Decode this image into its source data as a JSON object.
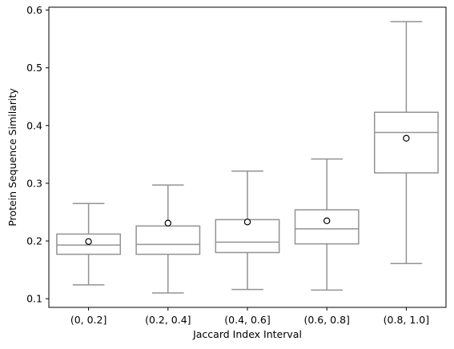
{
  "chart_data": {
    "type": "box",
    "xlabel": "Jaccard Index Interval",
    "ylabel": "Protein Sequence Similarity",
    "ylim": [
      0.085,
      0.605
    ],
    "yticks": [
      0.1,
      0.2,
      0.3,
      0.4,
      0.5,
      0.6
    ],
    "ytick_labels": [
      "0.1",
      "0.2",
      "0.3",
      "0.4",
      "0.5",
      "0.6"
    ],
    "categories": [
      "(0, 0.2]",
      "(0.2, 0.4]",
      "(0.4, 0.6]",
      "(0.6, 0.8]",
      "(0.8, 1.0]"
    ],
    "boxes": [
      {
        "whisker_low": 0.124,
        "q1": 0.177,
        "median": 0.193,
        "q3": 0.212,
        "whisker_high": 0.265,
        "mean": 0.199
      },
      {
        "whisker_low": 0.11,
        "q1": 0.177,
        "median": 0.194,
        "q3": 0.226,
        "whisker_high": 0.297,
        "mean": 0.231
      },
      {
        "whisker_low": 0.116,
        "q1": 0.18,
        "median": 0.198,
        "q3": 0.237,
        "whisker_high": 0.321,
        "mean": 0.233
      },
      {
        "whisker_low": 0.115,
        "q1": 0.195,
        "median": 0.221,
        "q3": 0.254,
        "whisker_high": 0.342,
        "mean": 0.235
      },
      {
        "whisker_low": 0.161,
        "q1": 0.318,
        "median": 0.388,
        "q3": 0.423,
        "whisker_high": 0.58,
        "mean": 0.378
      }
    ],
    "colors": {
      "box_line": "#939393",
      "mean_marker_edge": "#000000",
      "mean_marker_fill": "#ffffff",
      "axes": "#000000"
    },
    "grid": false,
    "legend": "none"
  }
}
